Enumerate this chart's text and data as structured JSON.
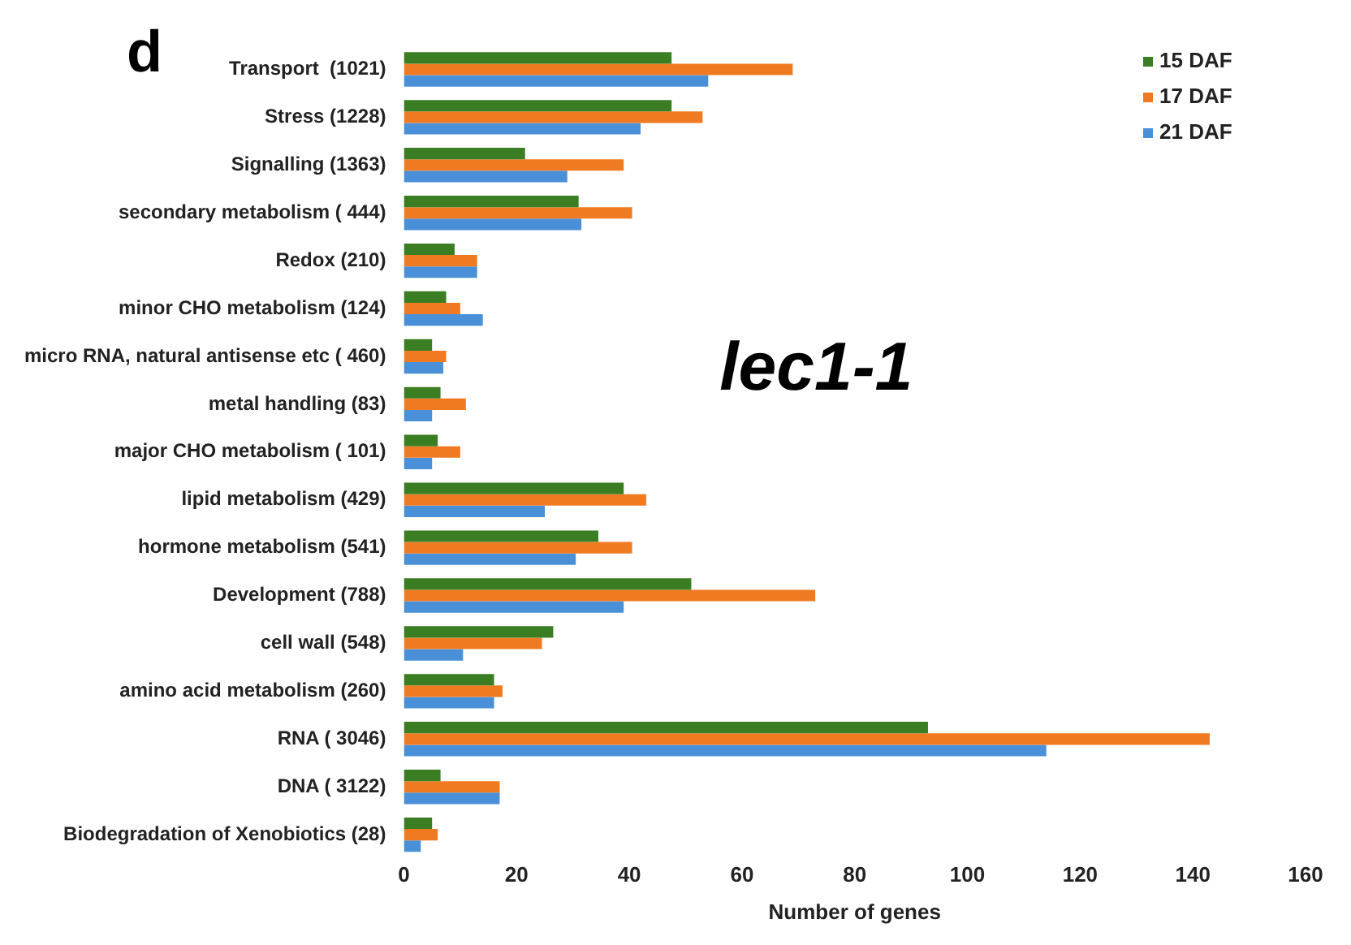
{
  "chart_data": {
    "type": "bar",
    "orientation": "horizontal",
    "categories": [
      "Transport  (1021)",
      "Stress (1228)",
      "Signalling (1363)",
      "secondary metabolism ( 444)",
      "Redox (210)",
      "minor CHO metabolism (124)",
      "micro RNA, natural antisense etc ( 460)",
      "metal handling (83)",
      "major CHO metabolism ( 101)",
      "lipid metabolism (429)",
      "hormone metabolism (541)",
      "Development (788)",
      "cell wall (548)",
      "amino acid metabolism (260)",
      "RNA ( 3046)",
      "DNA ( 3122)",
      "Biodegradation of Xenobiotics (28)"
    ],
    "series": [
      {
        "name": "15 DAF",
        "color": "#3a7d22",
        "values": [
          47.5,
          47.5,
          21.5,
          31,
          9,
          7.5,
          5,
          6.5,
          6,
          39,
          34.5,
          51,
          26.5,
          16,
          93,
          6.5,
          5
        ]
      },
      {
        "name": "17 DAF",
        "color": "#f07a21",
        "values": [
          69,
          53,
          39,
          40.5,
          13,
          10,
          7.5,
          11,
          10,
          43,
          40.5,
          73,
          24.5,
          17.5,
          143,
          17,
          6
        ]
      },
      {
        "name": "21 DAF",
        "color": "#4a90d9",
        "values": [
          54,
          42,
          29,
          31.5,
          13,
          14,
          7,
          5,
          5,
          25,
          30.5,
          39,
          10.5,
          16,
          114,
          17,
          3
        ]
      }
    ],
    "xlim": [
      0,
      160
    ],
    "xticks": [
      0,
      20,
      40,
      60,
      80,
      100,
      120,
      140,
      160
    ],
    "xlabel": "Number of genes",
    "grid": false,
    "legend": "top right",
    "annotations": [
      "d",
      "lec1-1"
    ]
  }
}
